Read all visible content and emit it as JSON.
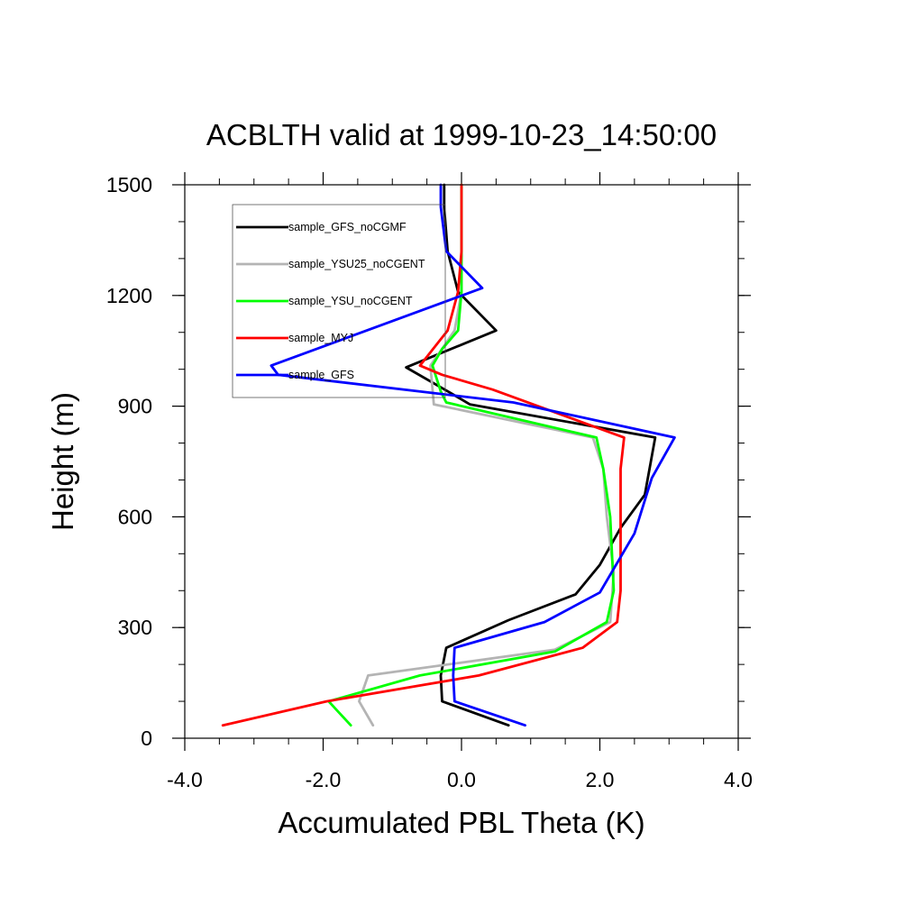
{
  "chart_data": {
    "type": "line",
    "title": "ACBLTH valid at 1999-10-23_14:50:00",
    "xlabel": "Accumulated PBL Theta (K)",
    "ylabel": "Height (m)",
    "xlim": [
      -4.0,
      4.0
    ],
    "ylim": [
      0,
      1500
    ],
    "x_ticks": [
      -4.0,
      -2.0,
      0.0,
      2.0,
      4.0
    ],
    "x_tick_labels": [
      "-4.0",
      "-2.0",
      "0.0",
      "2.0",
      "4.0"
    ],
    "y_ticks": [
      0,
      300,
      600,
      900,
      1200,
      1500
    ],
    "y_tick_labels": [
      "0",
      "300",
      "600",
      "900",
      "1200",
      "1500"
    ],
    "grid": false,
    "legend_position": "top-left",
    "series": [
      {
        "name": "sample_GFS_noCGMF",
        "color": "#000000",
        "x": [
          0.68,
          -0.28,
          -0.3,
          -0.22,
          0.68,
          1.65,
          2.0,
          2.3,
          2.65,
          2.8,
          0.12,
          -0.15,
          -0.8,
          0.5,
          -0.05,
          -0.2,
          -0.25,
          -0.25
        ],
        "y": [
          35,
          100,
          170,
          245,
          320,
          390,
          470,
          570,
          660,
          815,
          905,
          935,
          1005,
          1105,
          1210,
          1320,
          1440,
          1500
        ]
      },
      {
        "name": "sample_YSU25_noCGENT",
        "color": "#b4b4b4",
        "x": [
          -1.28,
          -1.48,
          -1.35,
          1.35,
          2.15,
          2.2,
          2.1,
          2.05,
          1.9,
          -0.4,
          -0.45,
          -0.3,
          -0.1,
          0.0,
          0.0,
          0.0
        ],
        "y": [
          35,
          100,
          170,
          240,
          315,
          450,
          600,
          730,
          815,
          905,
          1010,
          1050,
          1105,
          1210,
          1320,
          1500
        ]
      },
      {
        "name": "sample_YSU_noCGENT",
        "color": "#00ff00",
        "x": [
          -1.6,
          -1.92,
          -0.6,
          1.35,
          2.1,
          2.2,
          2.15,
          2.05,
          1.95,
          -0.22,
          -0.3,
          -0.42,
          -0.28,
          -0.05,
          0.0,
          0.0,
          0.0
        ],
        "y": [
          35,
          100,
          170,
          235,
          315,
          400,
          600,
          730,
          815,
          910,
          940,
          1010,
          1055,
          1105,
          1210,
          1320,
          1500
        ]
      },
      {
        "name": "sample_MYJ",
        "color": "#ff0000",
        "x": [
          -3.45,
          -1.95,
          0.25,
          1.75,
          2.25,
          2.3,
          2.3,
          2.3,
          2.35,
          0.45,
          -0.28,
          -0.6,
          -0.2,
          -0.05,
          0.0,
          0.0
        ],
        "y": [
          35,
          100,
          170,
          245,
          315,
          400,
          600,
          730,
          815,
          945,
          985,
          1010,
          1105,
          1210,
          1320,
          1500
        ]
      },
      {
        "name": "sample_GFS",
        "color": "#0000ff",
        "x": [
          0.92,
          -0.1,
          -0.12,
          -0.1,
          1.2,
          2.0,
          2.5,
          2.75,
          3.08,
          0.75,
          -2.65,
          -2.75,
          0.3,
          -0.22,
          -0.3,
          -0.3
        ],
        "y": [
          35,
          100,
          170,
          245,
          315,
          395,
          555,
          705,
          815,
          910,
          985,
          1010,
          1220,
          1320,
          1440,
          1500
        ]
      }
    ]
  }
}
